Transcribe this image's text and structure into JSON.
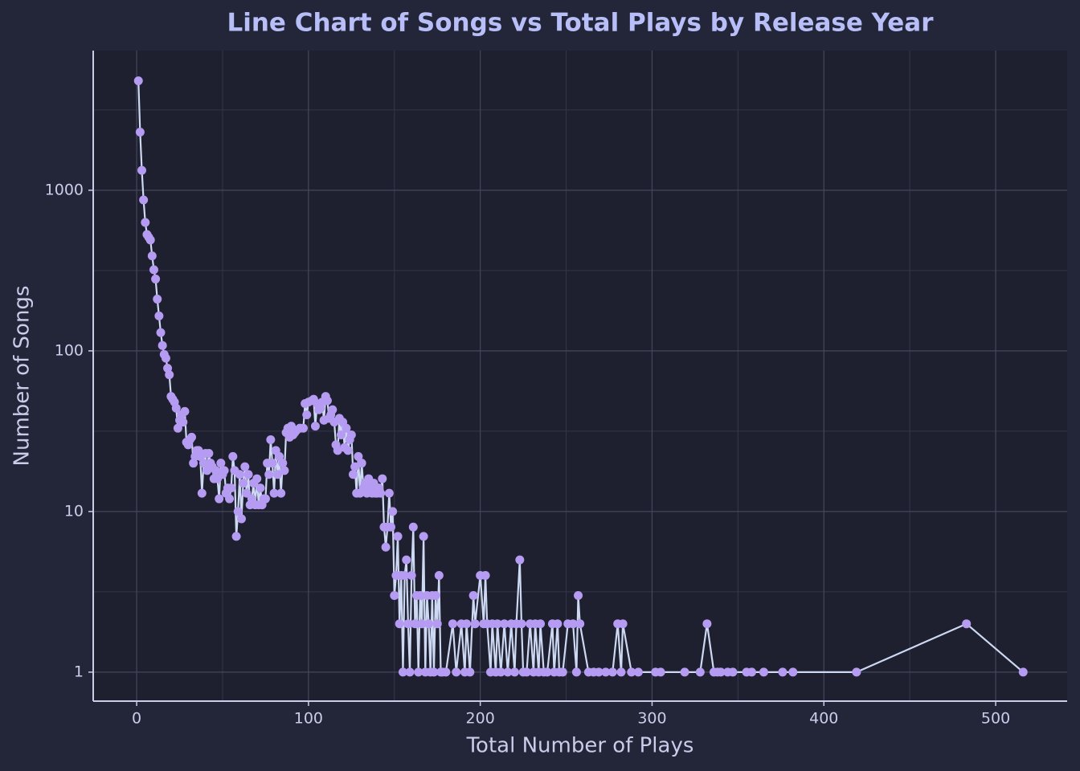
{
  "chart_data": {
    "type": "line",
    "title": "Line Chart of Songs vs Total Plays by Release Year",
    "x_label": "Total Number of Plays",
    "y_label": "Number of Songs",
    "x": [
      1,
      2,
      3,
      4,
      5,
      6,
      7,
      8,
      9,
      10,
      11,
      12,
      13,
      14,
      15,
      16,
      17,
      18,
      19,
      20,
      21,
      22,
      23,
      24,
      25,
      26,
      27,
      28,
      29,
      30,
      31,
      32,
      33,
      34,
      35,
      36,
      37,
      38,
      39,
      40,
      41,
      42,
      43,
      44,
      45,
      46,
      47,
      48,
      49,
      50,
      51,
      52,
      53,
      54,
      55,
      56,
      57,
      58,
      59,
      60,
      61,
      62,
      63,
      64,
      65,
      66,
      67,
      68,
      69,
      70,
      71,
      72,
      73,
      74,
      75,
      76,
      77,
      78,
      79,
      80,
      81,
      82,
      83,
      84,
      85,
      86,
      87,
      88,
      89,
      90,
      91,
      92,
      93,
      95,
      97,
      98,
      99,
      100,
      102,
      103,
      104,
      105,
      106,
      107,
      108,
      109,
      110,
      111,
      112,
      113,
      114,
      115,
      116,
      117,
      118,
      119,
      120,
      121,
      122,
      123,
      124,
      125,
      126,
      127,
      128,
      129,
      130,
      131,
      132,
      133,
      134,
      135,
      136,
      137,
      138,
      139,
      140,
      141,
      142,
      143,
      144,
      145,
      146,
      147,
      148,
      149,
      150,
      151,
      152,
      153,
      154,
      155,
      156,
      157,
      158,
      159,
      160,
      161,
      162,
      163,
      164,
      165,
      166,
      167,
      168,
      169,
      170,
      171,
      172,
      173,
      174,
      175,
      176,
      177,
      178,
      180,
      184,
      186,
      189,
      191,
      192,
      194,
      196,
      197,
      200,
      202,
      203,
      204,
      206,
      207,
      209,
      210,
      212,
      214,
      216,
      218,
      220,
      221,
      223,
      224,
      225,
      227,
      229,
      231,
      232,
      234,
      235,
      237,
      239,
      242,
      243,
      245,
      246,
      248,
      251,
      254,
      256,
      257,
      258,
      263,
      266,
      269,
      273,
      277,
      280,
      282,
      283,
      288,
      292,
      302,
      305,
      319,
      328,
      332,
      336,
      338,
      340,
      344,
      347,
      355,
      358,
      365,
      376,
      382,
      419,
      483,
      516
    ],
    "values": [
      4800,
      2300,
      1330,
      870,
      630,
      530,
      510,
      490,
      390,
      320,
      280,
      210,
      165,
      130,
      108,
      95,
      90,
      78,
      71,
      52,
      50,
      48,
      44,
      33,
      37,
      40,
      36,
      42,
      27,
      26,
      28,
      29,
      20,
      22,
      24,
      24,
      22,
      13,
      20,
      23,
      18,
      23,
      20,
      19,
      16,
      18,
      16,
      12,
      20,
      17,
      18,
      13,
      14,
      12,
      14,
      22,
      18,
      7,
      10,
      17,
      9,
      15,
      19,
      13,
      17,
      11,
      12,
      15,
      11,
      16,
      11,
      14,
      11,
      12,
      12,
      20,
      17,
      28,
      20,
      13,
      24,
      17,
      22,
      13,
      20,
      18,
      31,
      33,
      29,
      34,
      30,
      31,
      32,
      33,
      33,
      47,
      40,
      48,
      49,
      50,
      34,
      47,
      43,
      44,
      48,
      37,
      52,
      49,
      38,
      40,
      43,
      36,
      26,
      24,
      38,
      30,
      36,
      25,
      33,
      24,
      28,
      30,
      17,
      19,
      13,
      22,
      13,
      20,
      14,
      15,
      13,
      16,
      14,
      13,
      15,
      13,
      13,
      14,
      13,
      16,
      8,
      6,
      8,
      13,
      8,
      10,
      3,
      4,
      7,
      2,
      4,
      1,
      4,
      5,
      2,
      1,
      4,
      8,
      2,
      3,
      1,
      3,
      2,
      7,
      1,
      3,
      2,
      1,
      3,
      1,
      3,
      2,
      4,
      1,
      1,
      1,
      2,
      1,
      2,
      1,
      2,
      1,
      3,
      2,
      4,
      2,
      4,
      2,
      1,
      2,
      1,
      2,
      1,
      2,
      1,
      2,
      1,
      2,
      5,
      2,
      1,
      1,
      2,
      1,
      2,
      1,
      2,
      1,
      1,
      2,
      1,
      2,
      1,
      1,
      2,
      2,
      1,
      3,
      2,
      1,
      1,
      1,
      1,
      1,
      2,
      1,
      2,
      1,
      1,
      1,
      1,
      1,
      1,
      2,
      1,
      1,
      1,
      1,
      1,
      1,
      1,
      1,
      1,
      1,
      1,
      2,
      1
    ],
    "line_color": "#cdd9f2",
    "marker_color": "#b59cf2",
    "xlim": [
      -25.3,
      541.6
    ],
    "ylim": [
      0.66,
      7400
    ],
    "y_log": true,
    "xticks": [
      0,
      100,
      200,
      300,
      400,
      500
    ],
    "yticks": [
      1,
      10,
      100,
      1000
    ],
    "grid": true,
    "minor_grid": true
  }
}
